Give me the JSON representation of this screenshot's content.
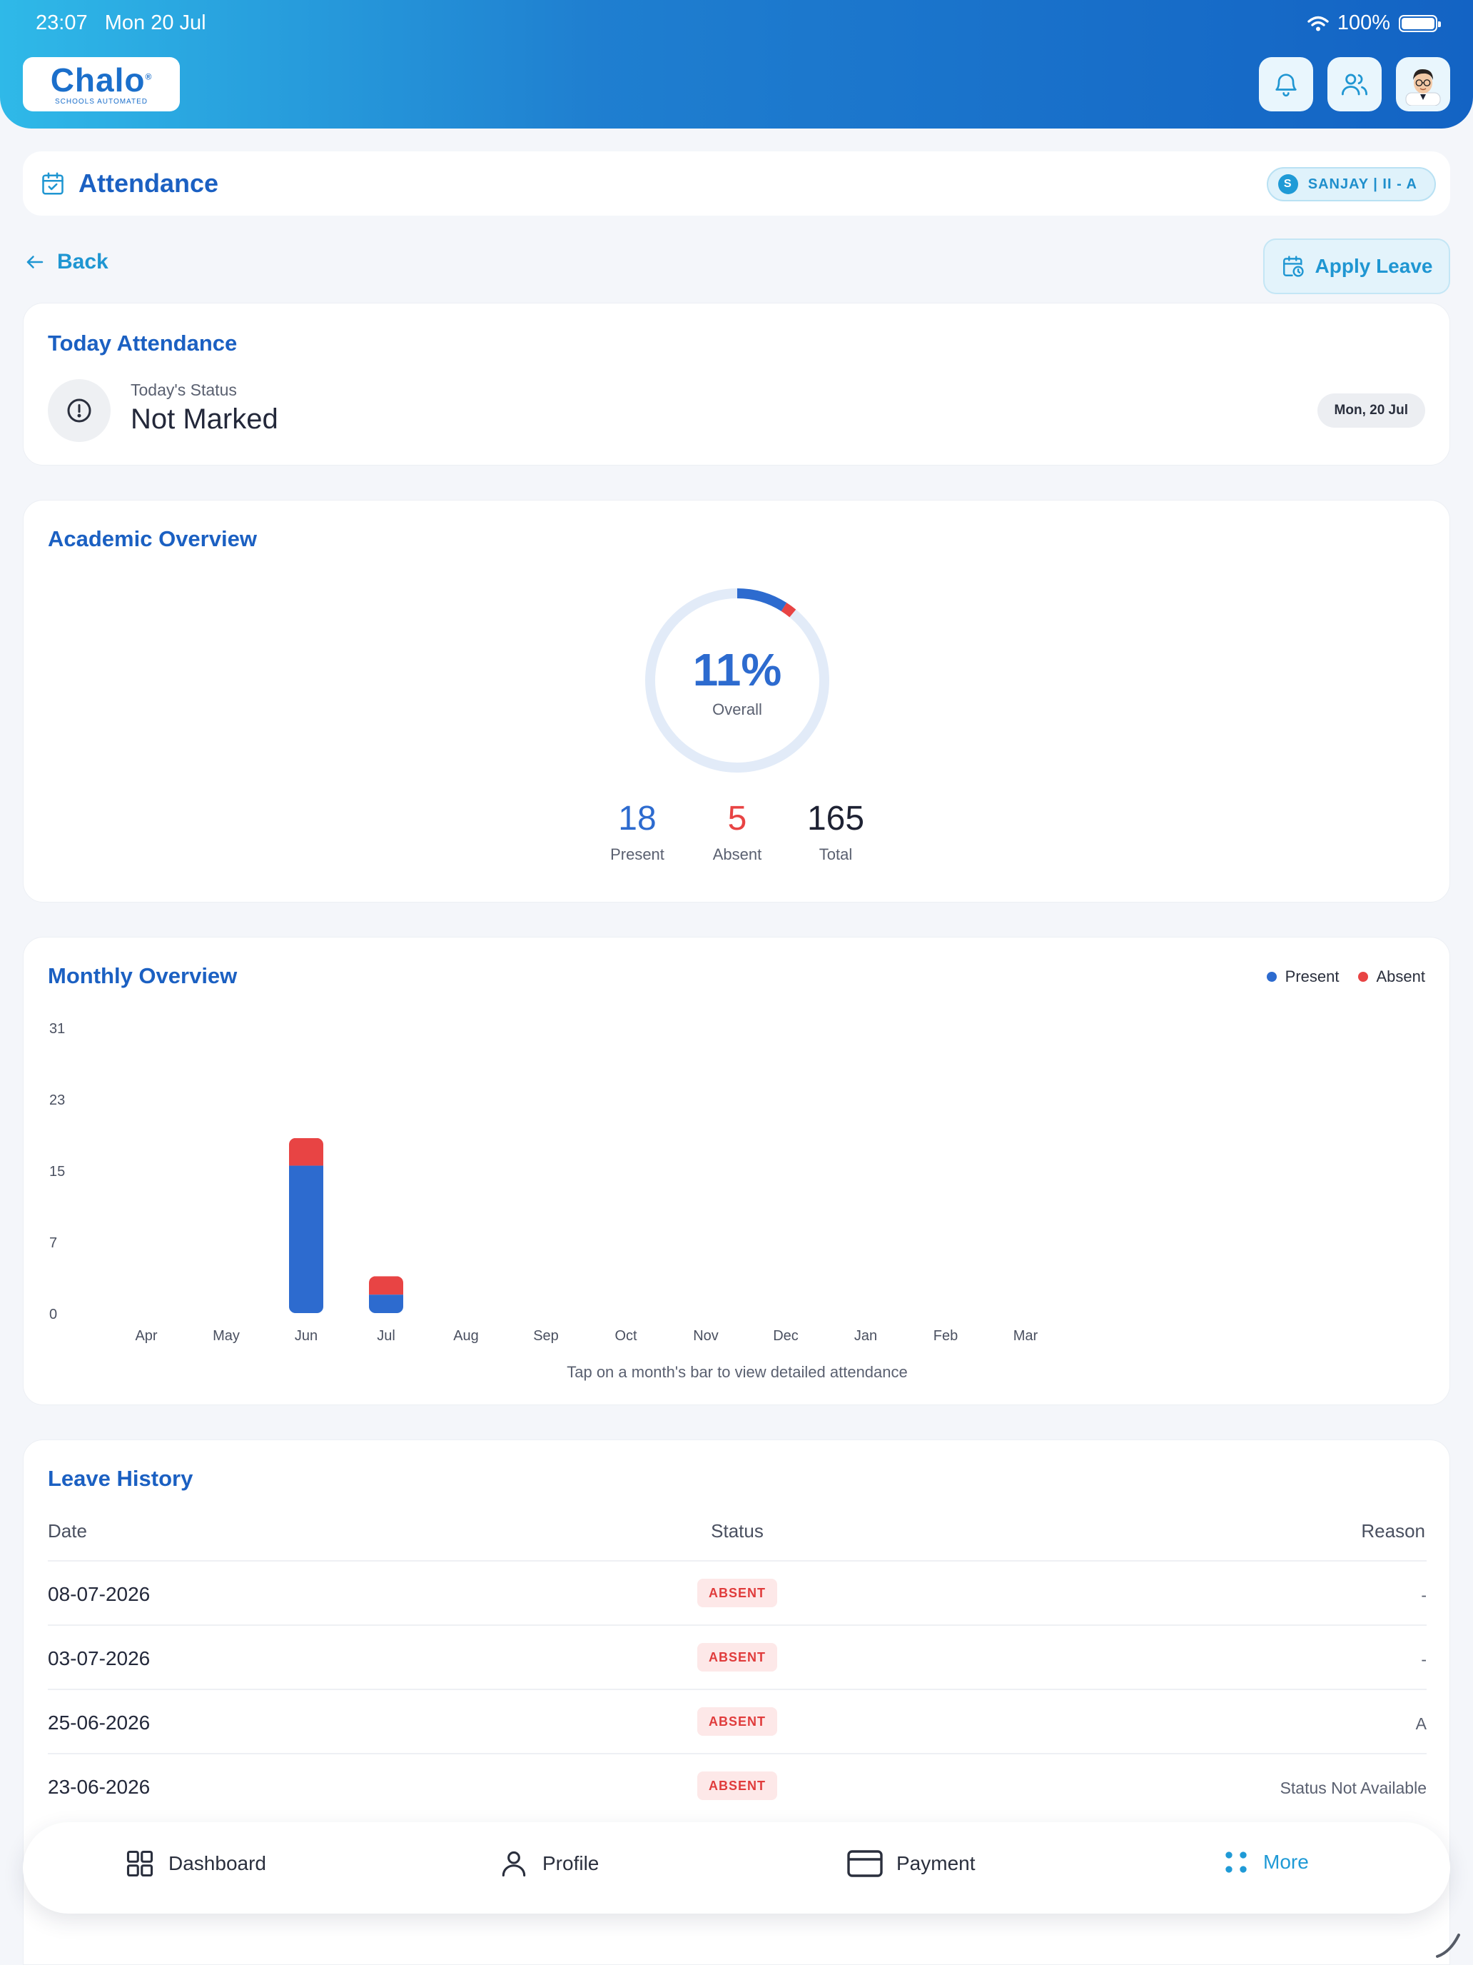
{
  "status_bar": {
    "time": "23:07",
    "date": "Mon 20 Jul",
    "battery": "100%"
  },
  "app": {
    "logo_text": "Chalo",
    "logo_tagline": "SCHOOLS AUTOMATED",
    "brand_color": "#1b60c2",
    "accent_color": "#1f9ad6"
  },
  "page": {
    "title": "Attendance",
    "student_initial": "S",
    "student_label": "SANJAY | II - A"
  },
  "nav": {
    "back_label": "Back",
    "apply_leave_label": "Apply Leave"
  },
  "today": {
    "title": "Today Attendance",
    "status_label": "Today's Status",
    "status_value": "Not Marked",
    "date": "Mon, 20 Jul"
  },
  "academic": {
    "title": "Academic Overview",
    "percent_label": "11%",
    "percent_value": 11,
    "sub_label": "Overall",
    "present": "18",
    "present_label": "Present",
    "absent": "5",
    "absent_label": "Absent",
    "total": "165",
    "total_label": "Total"
  },
  "monthly": {
    "title": "Monthly Overview",
    "hint": "Tap on a month's bar to view detailed attendance"
  },
  "chart_data": {
    "type": "bar",
    "stacked": true,
    "categories": [
      "Apr",
      "May",
      "Jun",
      "Jul",
      "Aug",
      "Sep",
      "Oct",
      "Nov",
      "Dec",
      "Jan",
      "Feb",
      "Mar"
    ],
    "series": [
      {
        "name": "Present",
        "color": "#2d6bcf",
        "values": [
          0,
          0,
          16,
          2,
          0,
          0,
          0,
          0,
          0,
          0,
          0,
          0
        ]
      },
      {
        "name": "Absent",
        "color": "#e84444",
        "values": [
          0,
          0,
          3,
          2,
          0,
          0,
          0,
          0,
          0,
          0,
          0,
          0
        ]
      }
    ],
    "yticks": [
      "0",
      "7",
      "15",
      "23",
      "31"
    ],
    "ylim": [
      0,
      31
    ],
    "legend": "top-right",
    "grid": false
  },
  "leave_history": {
    "title": "Leave History",
    "columns": [
      "Date",
      "Status",
      "Reason"
    ],
    "rows": [
      {
        "date": "08-07-2026",
        "status": "ABSENT",
        "reason": "-"
      },
      {
        "date": "03-07-2026",
        "status": "ABSENT",
        "reason": "-"
      },
      {
        "date": "25-06-2026",
        "status": "ABSENT",
        "reason": "A"
      },
      {
        "date": "23-06-2026",
        "status": "ABSENT",
        "reason": "Status Not Available"
      }
    ]
  },
  "bottom_nav": [
    {
      "label": "Dashboard",
      "icon": "grid-icon"
    },
    {
      "label": "Profile",
      "icon": "user-icon"
    },
    {
      "label": "Payment",
      "icon": "card-icon"
    },
    {
      "label": "More",
      "icon": "dots-icon",
      "active": true
    }
  ]
}
